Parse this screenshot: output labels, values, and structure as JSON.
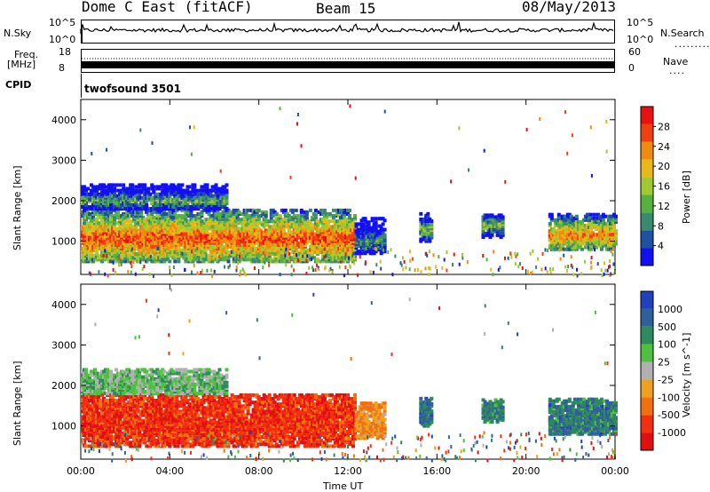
{
  "header": {
    "title": "Dome C East (fitACF)",
    "beam": "Beam 15",
    "date": "08/May/2013"
  },
  "params": {
    "nsky_label": "N.Sky",
    "nsky_top": "10^5",
    "nsky_bottom": "10^0",
    "nsearch_label": "N.Search",
    "nsearch_top": "10^5",
    "nsearch_bottom": "10^0",
    "freq_label": "Freq.",
    "freq_unit": "[MHz]",
    "freq_top": "18",
    "freq_bottom": "8",
    "nave_label": "Nave",
    "nave_top": "60",
    "nave_bottom": "0",
    "cpid_label": "CPID",
    "cpid_value": "twofsound 3501"
  },
  "chart_data": [
    {
      "type": "heatmap",
      "name": "power",
      "ylabel": "Slant Range [km]",
      "xlabel": "Time UT",
      "ylim": [
        180,
        4500
      ],
      "yticks": [
        1000,
        2000,
        3000,
        4000
      ],
      "x_tick_labels": [
        "00:00",
        "04:00",
        "08:00",
        "12:00",
        "16:00",
        "20:00",
        "00:00"
      ],
      "colorbar": {
        "label": "Power [dB]",
        "range": [
          0,
          32
        ],
        "ticks": [
          4,
          8,
          12,
          16,
          20,
          24,
          28
        ],
        "colors": [
          "#1010f0",
          "#2050a0",
          "#3a8a70",
          "#58b040",
          "#a0c830",
          "#e8b818",
          "#f08a10",
          "#f04010",
          "#e81010"
        ]
      },
      "segments": [
        {
          "start": 0.0,
          "end": 12.3,
          "rmin": 500,
          "rmax": 1800,
          "center": 1050,
          "level": 0.85
        },
        {
          "start": 0.0,
          "end": 6.5,
          "rmin": 1800,
          "rmax": 2400,
          "center": 2000,
          "level": 0.4
        },
        {
          "start": 12.3,
          "end": 13.6,
          "rmin": 700,
          "rmax": 1600,
          "center": 1000,
          "level": 0.35
        },
        {
          "start": 15.2,
          "end": 15.7,
          "rmin": 1000,
          "rmax": 1700,
          "center": 1300,
          "level": 0.5
        },
        {
          "start": 18.0,
          "end": 18.9,
          "rmin": 1100,
          "rmax": 1650,
          "center": 1400,
          "level": 0.5
        },
        {
          "start": 21.0,
          "end": 24.0,
          "rmin": 800,
          "rmax": 1700,
          "center": 1150,
          "level": 0.75
        }
      ]
    },
    {
      "type": "heatmap",
      "name": "velocity",
      "ylabel": "Slant Range [km]",
      "xlabel": "Time UT",
      "ylim": [
        180,
        4500
      ],
      "yticks": [
        1000,
        2000,
        3000,
        4000
      ],
      "x_tick_labels": [
        "00:00",
        "04:00",
        "08:00",
        "12:00",
        "16:00",
        "20:00",
        "00:00"
      ],
      "colorbar": {
        "label": "Velocity [m s^-1]",
        "tick_labels": [
          "1000",
          "500",
          "100",
          "25",
          "-25",
          "-100",
          "-500",
          "-1000"
        ],
        "colors": [
          "#2040c0",
          "#30609a",
          "#2e8a5a",
          "#50c040",
          "#b0b0b0",
          "#f0a020",
          "#f07010",
          "#f03010",
          "#e01010"
        ]
      },
      "segments": [
        {
          "start": 0.0,
          "end": 12.3,
          "rmin": 500,
          "rmax": 1800,
          "center": 1050,
          "level": -0.7
        },
        {
          "start": 0.0,
          "end": 6.5,
          "rmin": 1800,
          "rmax": 2400,
          "center": 2000,
          "level": 0.2
        },
        {
          "start": 12.3,
          "end": 13.6,
          "rmin": 700,
          "rmax": 1600,
          "center": 1000,
          "level": -0.3
        },
        {
          "start": 15.2,
          "end": 15.7,
          "rmin": 1000,
          "rmax": 1700,
          "center": 1300,
          "level": 0.6
        },
        {
          "start": 18.0,
          "end": 18.9,
          "rmin": 1100,
          "rmax": 1650,
          "center": 1400,
          "level": 0.5
        },
        {
          "start": 21.0,
          "end": 24.0,
          "rmin": 800,
          "rmax": 1700,
          "center": 1150,
          "level": 0.55
        }
      ]
    }
  ]
}
